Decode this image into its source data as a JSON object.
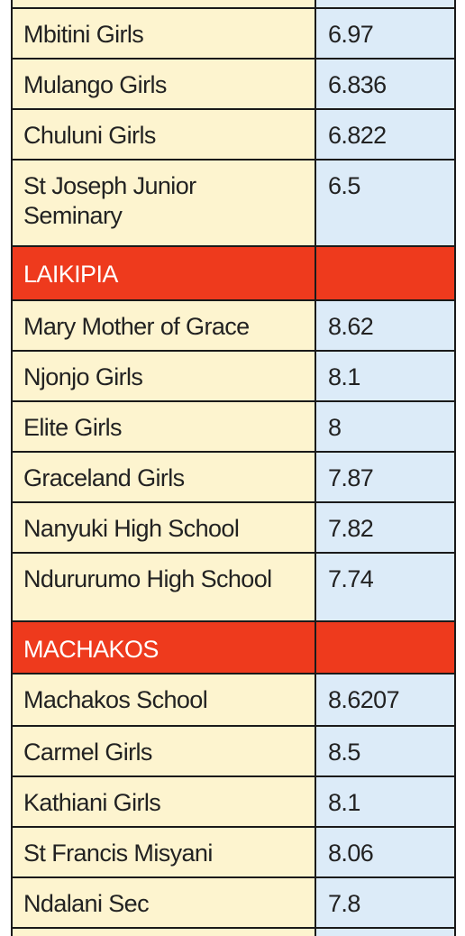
{
  "sections": [
    {
      "region": null,
      "rows": [
        {
          "name": "Mbitini Girls",
          "score": "6.97"
        },
        {
          "name": "Mulango Girls",
          "score": "6.836"
        },
        {
          "name": "Chuluni Girls",
          "score": "6.822"
        },
        {
          "name": "St Joseph Junior Seminary",
          "name_line1": "St Joseph Junior",
          "name_line2": "Seminary",
          "score": "6.5"
        }
      ]
    },
    {
      "region": "LAIKIPIA",
      "rows": [
        {
          "name": "Mary Mother of Grace",
          "score": "8.62"
        },
        {
          "name": "Njonjo Girls",
          "score": "8.1"
        },
        {
          "name": "Elite Girls",
          "score": "8"
        },
        {
          "name": "Graceland Girls",
          "score": "7.87"
        },
        {
          "name": "Nanyuki High School",
          "score": "7.82"
        },
        {
          "name": "Ndururumo High School",
          "score": "7.74"
        }
      ]
    },
    {
      "region": "MACHAKOS",
      "rows": [
        {
          "name": "Machakos School",
          "score": "8.6207"
        },
        {
          "name": "Carmel Girls",
          "score": "8.5"
        },
        {
          "name": "Kathiani Girls",
          "score": "8.1"
        },
        {
          "name": "St Francis Misyani",
          "score": "8.06"
        },
        {
          "name": "Ndalani Sec",
          "score": "7.8"
        }
      ]
    }
  ],
  "colors": {
    "name_column_bg": "#fdf4cf",
    "score_column_bg": "#dcebf8",
    "region_header_bg": "#ee3a1d",
    "region_header_text": "#ffffff",
    "grid_line": "#1a1a1a",
    "text": "#222222"
  }
}
